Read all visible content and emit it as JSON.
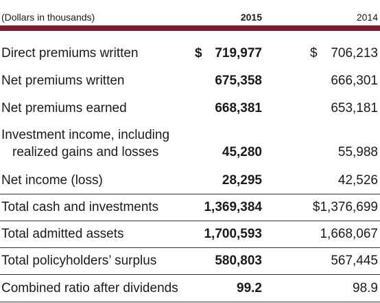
{
  "header": {
    "label": "(Dollars in thousands)",
    "col_2015": "2015",
    "col_2014": "2014"
  },
  "rows": [
    {
      "label": [
        "Direct premiums written"
      ],
      "symbol_2015": "$",
      "value_2015": "719,977",
      "symbol_2014": "$",
      "value_2014": "706,213"
    },
    {
      "label": [
        "Net premiums written"
      ],
      "value_2015": "675,358",
      "value_2014": "666,301"
    },
    {
      "label": [
        "Net premiums earned"
      ],
      "value_2015": "668,381",
      "value_2014": "653,181"
    },
    {
      "label": [
        "Investment income, including",
        "realized gains and losses"
      ],
      "value_2015": "45,280",
      "value_2014": "55,988"
    },
    {
      "label": [
        "Net income (loss)"
      ],
      "value_2015": "28,295",
      "value_2014": "42,526"
    },
    {
      "label": [
        "Total cash and investments"
      ],
      "value_2015": "1,369,384",
      "value_2014": "$1,376,699"
    },
    {
      "label": [
        "Total admitted assets"
      ],
      "value_2015": "1,700,593",
      "value_2014": "1,668,067"
    },
    {
      "label": [
        "Total policyholders’ surplus"
      ],
      "value_2015": "580,803",
      "value_2014": "567,445"
    },
    {
      "label": [
        "Combined ratio after dividends"
      ],
      "value_2015": "99.2",
      "value_2014": "98.9"
    }
  ]
}
